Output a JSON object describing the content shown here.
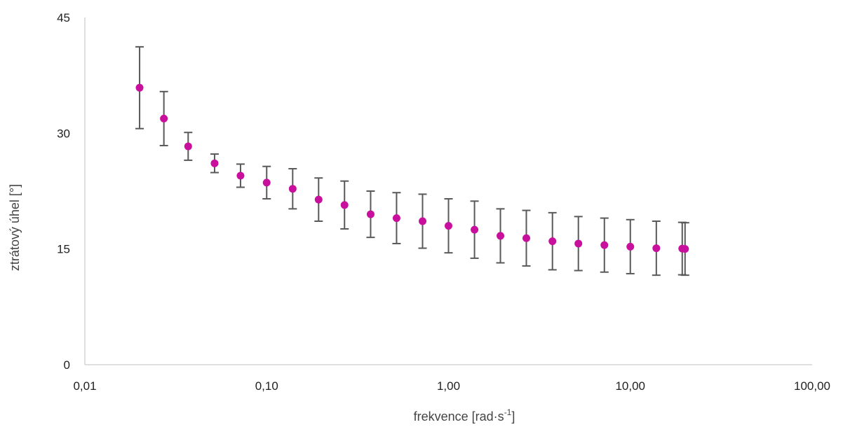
{
  "chart_data": {
    "type": "scatter",
    "title": "",
    "xlabel": "frekvence [rad·s",
    "xlabel_sup": "-1",
    "xlabel_end": "]",
    "ylabel": "ztrátový úhel [°]",
    "x_scale": "log",
    "xlim": [
      0.01,
      100
    ],
    "ylim": [
      0,
      45
    ],
    "x_ticks": [
      0.01,
      0.1,
      1,
      10,
      100
    ],
    "x_tick_labels": [
      "0,01",
      "0,10",
      "1,00",
      "10,00",
      "100,00"
    ],
    "y_ticks": [
      0,
      15,
      30,
      45
    ],
    "y_tick_labels": [
      "0",
      "15",
      "30",
      "45"
    ],
    "grid": false,
    "legend": "none",
    "colors": {
      "marker": "#c8109c",
      "error_bar": "#595959",
      "axis": "#bfbfbf"
    },
    "series": [
      {
        "x": [
          0.02,
          0.0272,
          0.037,
          0.0517,
          0.0718,
          0.1,
          0.139,
          0.193,
          0.268,
          0.373,
          0.518,
          0.72,
          1.0,
          1.39,
          1.93,
          2.68,
          3.73,
          5.18,
          7.2,
          10.0,
          13.9,
          19.3,
          20.0
        ],
        "y": [
          35.9,
          31.9,
          28.3,
          26.1,
          24.5,
          23.6,
          22.8,
          21.4,
          20.7,
          19.5,
          19.0,
          18.6,
          18.0,
          17.5,
          16.7,
          16.4,
          16.0,
          15.7,
          15.5,
          15.3,
          15.1,
          15.05,
          15.0
        ],
        "err": [
          5.3,
          3.5,
          1.8,
          1.2,
          1.5,
          2.1,
          2.6,
          2.8,
          3.1,
          3.0,
          3.3,
          3.5,
          3.5,
          3.7,
          3.5,
          3.6,
          3.7,
          3.5,
          3.5,
          3.5,
          3.5,
          3.4,
          3.4
        ]
      }
    ]
  }
}
